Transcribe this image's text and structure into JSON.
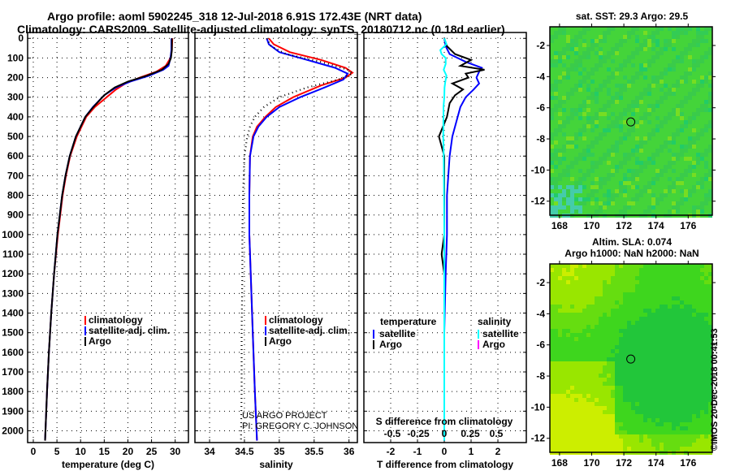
{
  "title_line1": "Argo profile: aoml 5902245_318 12-Jul-2018 6.91S 172.43E (NRT data)",
  "title_line2": "Climatology: CARS2009. Satellite-adjusted climatology: synTS_20180712.nc (0.18d earlier)",
  "credit_line1": "US ARGO PROJECT",
  "credit_line2": "PI: GREGORY C. JOHNSON",
  "timestamp": "©IMOS 20-Dec-2018 00:41:53",
  "colors": {
    "climatology": "#ff0000",
    "satellite": "#0000ff",
    "argo": "#000000",
    "sal_satellite": "#00ffff",
    "sal_argo": "#ff00ff"
  },
  "chart_data": [
    {
      "type": "line",
      "name": "temperature",
      "xlabel": "temperature (deg C)",
      "xlim": [
        -1.2,
        32.8
      ],
      "ylim": [
        2060,
        -30
      ],
      "xticks": [
        0,
        5,
        10,
        15,
        20,
        25,
        30
      ],
      "yticks": [
        0,
        100,
        200,
        300,
        400,
        500,
        600,
        700,
        800,
        900,
        1000,
        1100,
        1200,
        1300,
        1400,
        1500,
        1600,
        1700,
        1800,
        1900,
        2000
      ],
      "legend": [
        "climatology",
        "satellite-adj. clim.",
        "Argo"
      ],
      "legend_placement": "lower-right",
      "series": [
        {
          "name": "climatology",
          "color": "#ff0000",
          "depth": [
            0,
            60,
            100,
            140,
            170,
            200,
            230,
            260,
            300,
            350,
            400,
            500,
            600,
            700,
            800,
            1000,
            1200,
            1400,
            1600,
            1800,
            2050
          ],
          "values": [
            29.4,
            29.3,
            29.0,
            28.0,
            26.0,
            22.5,
            19.5,
            17.5,
            15.5,
            13.0,
            11.2,
            9.2,
            7.8,
            6.9,
            6.2,
            5.2,
            4.4,
            3.8,
            3.3,
            2.9,
            2.5
          ]
        },
        {
          "name": "satellite-adj. clim.",
          "color": "#0000ff",
          "depth": [
            0,
            60,
            100,
            140,
            160,
            190,
            220,
            250,
            290,
            350,
            400,
            500,
            600,
            700,
            800,
            1000,
            1200,
            1400,
            1600,
            1800,
            2050
          ],
          "values": [
            29.2,
            29.2,
            29.0,
            28.6,
            27.5,
            24.5,
            20.5,
            17.5,
            15.0,
            12.6,
            11.0,
            9.0,
            7.7,
            6.8,
            6.1,
            5.1,
            4.4,
            3.8,
            3.3,
            2.9,
            2.5
          ]
        },
        {
          "name": "Argo",
          "color": "#000000",
          "depth": [
            0,
            60,
            100,
            130,
            160,
            190,
            220,
            250,
            290,
            350,
            400,
            500,
            600,
            700,
            800,
            1000,
            1200,
            1400,
            1600,
            1800,
            2050
          ],
          "values": [
            29.3,
            29.3,
            29.1,
            28.6,
            27.2,
            24.0,
            20.0,
            17.2,
            15.0,
            12.7,
            11.0,
            9.0,
            7.7,
            6.8,
            6.1,
            5.1,
            4.4,
            3.8,
            3.3,
            2.9,
            2.5
          ]
        }
      ]
    },
    {
      "type": "line",
      "name": "salinity",
      "xlabel": "salinity",
      "xlim": [
        33.79,
        36.12
      ],
      "ylim": [
        2060,
        -30
      ],
      "xticks": [
        34,
        34.5,
        35,
        35.5,
        36
      ],
      "legend": [
        "climatology",
        "satellite-adj. clim.",
        "Argo"
      ],
      "legend_placement": "lower-right",
      "series": [
        {
          "name": "climatology",
          "color": "#ff0000",
          "depth": [
            0,
            30,
            70,
            110,
            150,
            175,
            200,
            240,
            300,
            350,
            400,
            450,
            500,
            600,
            800,
            1000,
            1200,
            1500,
            1800,
            2050
          ],
          "values": [
            34.85,
            34.92,
            35.15,
            35.6,
            35.95,
            36.05,
            35.95,
            35.6,
            35.2,
            34.95,
            34.8,
            34.68,
            34.62,
            34.58,
            34.57,
            34.57,
            34.59,
            34.62,
            34.65,
            34.68
          ]
        },
        {
          "name": "satellite-adj. clim.",
          "color": "#0000ff",
          "depth": [
            0,
            30,
            70,
            110,
            150,
            180,
            210,
            250,
            300,
            350,
            400,
            450,
            500,
            600,
            800,
            1000,
            1200,
            1500,
            1800,
            2050
          ],
          "values": [
            34.82,
            34.85,
            35.0,
            35.4,
            35.8,
            35.98,
            35.92,
            35.65,
            35.3,
            35.0,
            34.82,
            34.7,
            34.63,
            34.58,
            34.57,
            34.57,
            34.59,
            34.62,
            34.65,
            34.68
          ]
        },
        {
          "name": "Argo",
          "color": "#000000",
          "dashed": true,
          "depth": [
            0,
            40,
            80,
            120,
            160,
            180,
            210,
            250,
            300,
            350,
            400,
            450,
            500,
            600,
            800,
            1000,
            1200,
            1500,
            1800,
            2050
          ],
          "values": [
            34.82,
            34.88,
            35.1,
            35.6,
            35.98,
            36.05,
            35.85,
            35.4,
            35.0,
            34.78,
            34.65,
            34.58,
            34.54,
            34.5,
            34.48,
            34.47,
            34.47,
            34.46,
            34.46,
            34.45
          ]
        }
      ]
    },
    {
      "type": "line",
      "name": "difference",
      "xlabel": "T difference from climatology",
      "top_label": "S difference from climatology",
      "xlim": [
        -3,
        3.06
      ],
      "xticks": [
        -2,
        -1,
        0,
        1,
        2
      ],
      "top_xticks": [
        -0.5,
        -0.25,
        0,
        0.25,
        0.5
      ],
      "top_tick_labels": [
        "-0.5",
        "-0.25",
        "0",
        "0.25",
        "0.5"
      ],
      "legend_temperature": {
        "heading": "temperature",
        "items": [
          "satellite",
          "Argo"
        ]
      },
      "legend_salinity": {
        "heading": "salinity",
        "items": [
          "satellite",
          "Argo"
        ]
      },
      "series": [
        {
          "name": "T satellite",
          "color": "#0000ff",
          "depth": [
            0,
            40,
            80,
            120,
            150,
            170,
            200,
            230,
            260,
            300,
            350,
            400,
            500,
            600,
            800,
            1000,
            1200,
            1500,
            2050
          ],
          "values": [
            0,
            0.05,
            0.2,
            0.8,
            1.4,
            1.3,
            1.2,
            1.3,
            1.1,
            0.8,
            0.6,
            0.5,
            0.3,
            0.2,
            0.1,
            0.1,
            0.05,
            0,
            0
          ]
        },
        {
          "name": "T Argo",
          "color": "#000000",
          "depth": [
            0,
            40,
            80,
            110,
            140,
            160,
            180,
            200,
            230,
            260,
            290,
            330,
            400,
            500,
            550,
            600,
            800,
            1000,
            1100,
            1200,
            1500,
            2050
          ],
          "values": [
            0,
            0.1,
            0.4,
            1.0,
            0.6,
            1.5,
            0.8,
            0.9,
            0.3,
            0.7,
            0.4,
            0.2,
            0.1,
            -0.2,
            -0.1,
            0,
            0,
            0,
            -0.1,
            0,
            0,
            0
          ]
        },
        {
          "name": "S satellite",
          "color": "#00ffff",
          "depth": [
            0,
            30,
            60,
            80,
            100,
            130,
            160,
            190,
            220,
            250,
            300,
            350,
            400,
            500,
            600,
            800,
            1000,
            1500,
            2050
          ],
          "values": [
            0,
            0.08,
            -0.15,
            -0.1,
            0.05,
            0.05,
            -0.02,
            0.08,
            0.04,
            0.01,
            0,
            -0.03,
            -0.03,
            -0.04,
            -0.02,
            -0.01,
            0,
            0,
            0
          ]
        }
      ]
    },
    {
      "type": "heatmap",
      "name": "sst-map",
      "title": "sat. SST: 29.3 Argo: 29.5",
      "xticks": [
        168,
        170,
        172,
        174,
        176
      ],
      "yticks": [
        -2,
        -4,
        -6,
        -8,
        -10,
        -12
      ],
      "xlim": [
        167.4,
        177.5
      ],
      "ylim": [
        -12.9,
        -0.8
      ],
      "marker": {
        "lon": 172.43,
        "lat": -6.91
      }
    },
    {
      "type": "heatmap",
      "name": "sla-map",
      "title": "Altim. SLA: 0.074",
      "subtitle": "Argo h1000: NaN h2000: NaN",
      "xticks": [
        168,
        170,
        172,
        174,
        176
      ],
      "yticks": [
        -2,
        -4,
        -6,
        -8,
        -10,
        -12
      ],
      "xlim": [
        167.4,
        177.5
      ],
      "ylim": [
        -12.9,
        -0.8
      ],
      "marker": {
        "lon": 172.43,
        "lat": -6.91
      }
    }
  ]
}
